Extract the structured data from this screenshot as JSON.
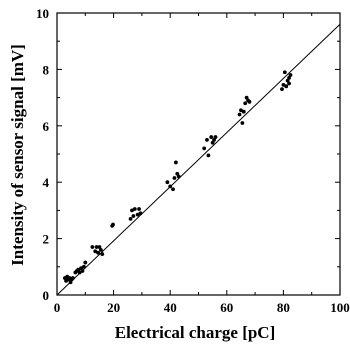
{
  "chart_data": {
    "type": "scatter",
    "title": "",
    "xlabel": "Electrical charge [pC]",
    "ylabel": "Intensity of sensor signal [mV]",
    "xlim": [
      0,
      100
    ],
    "ylim": [
      0,
      10
    ],
    "xticks": [
      "0",
      "20",
      "40",
      "60",
      "80",
      "100"
    ],
    "yticks": [
      "0",
      "2",
      "4",
      "6",
      "8",
      "10"
    ],
    "grid": false,
    "legend": "none",
    "marker_color": "#000000",
    "series": [
      {
        "points": [
          [
            2.8,
            0.6
          ],
          [
            3.2,
            0.5
          ],
          [
            3.6,
            0.65
          ],
          [
            4.0,
            0.55
          ],
          [
            4.4,
            0.6
          ],
          [
            4.8,
            0.45
          ],
          [
            5.2,
            0.55
          ],
          [
            5.6,
            0.6
          ],
          [
            6.5,
            0.8
          ],
          [
            7.0,
            0.85
          ],
          [
            7.5,
            0.9
          ],
          [
            8.0,
            0.8
          ],
          [
            8.5,
            0.95
          ],
          [
            9.0,
            0.85
          ],
          [
            9.5,
            1.0
          ],
          [
            10.0,
            1.15
          ],
          [
            12.5,
            1.7
          ],
          [
            13.5,
            1.55
          ],
          [
            14.0,
            1.7
          ],
          [
            14.5,
            1.5
          ],
          [
            15.0,
            1.7
          ],
          [
            15.5,
            1.6
          ],
          [
            16.0,
            1.45
          ],
          [
            19.5,
            2.45
          ],
          [
            19.8,
            2.5
          ],
          [
            26.0,
            2.7
          ],
          [
            26.5,
            3.0
          ],
          [
            27.0,
            2.8
          ],
          [
            27.5,
            3.05
          ],
          [
            28.5,
            2.85
          ],
          [
            29.0,
            3.05
          ],
          [
            29.5,
            2.9
          ],
          [
            39.0,
            4.0
          ],
          [
            40.0,
            3.85
          ],
          [
            41.0,
            3.75
          ],
          [
            41.5,
            4.15
          ],
          [
            42.0,
            4.7
          ],
          [
            42.5,
            4.3
          ],
          [
            43.0,
            4.2
          ],
          [
            52.0,
            5.2
          ],
          [
            53.0,
            5.5
          ],
          [
            53.5,
            4.95
          ],
          [
            54.5,
            5.6
          ],
          [
            55.0,
            5.4
          ],
          [
            55.5,
            5.5
          ],
          [
            56.0,
            5.6
          ],
          [
            64.5,
            6.4
          ],
          [
            65.0,
            6.55
          ],
          [
            65.5,
            6.1
          ],
          [
            66.0,
            6.5
          ],
          [
            66.5,
            6.8
          ],
          [
            67.0,
            7.0
          ],
          [
            67.5,
            6.9
          ],
          [
            68.0,
            6.85
          ],
          [
            79.5,
            7.3
          ],
          [
            80.0,
            7.45
          ],
          [
            80.5,
            7.9
          ],
          [
            81.0,
            7.4
          ],
          [
            81.5,
            7.6
          ],
          [
            82.0,
            7.7
          ],
          [
            82.5,
            7.8
          ],
          [
            82.0,
            7.5
          ]
        ]
      }
    ],
    "fit_line": {
      "x": [
        0,
        100
      ],
      "y": [
        0,
        9.6
      ]
    }
  }
}
